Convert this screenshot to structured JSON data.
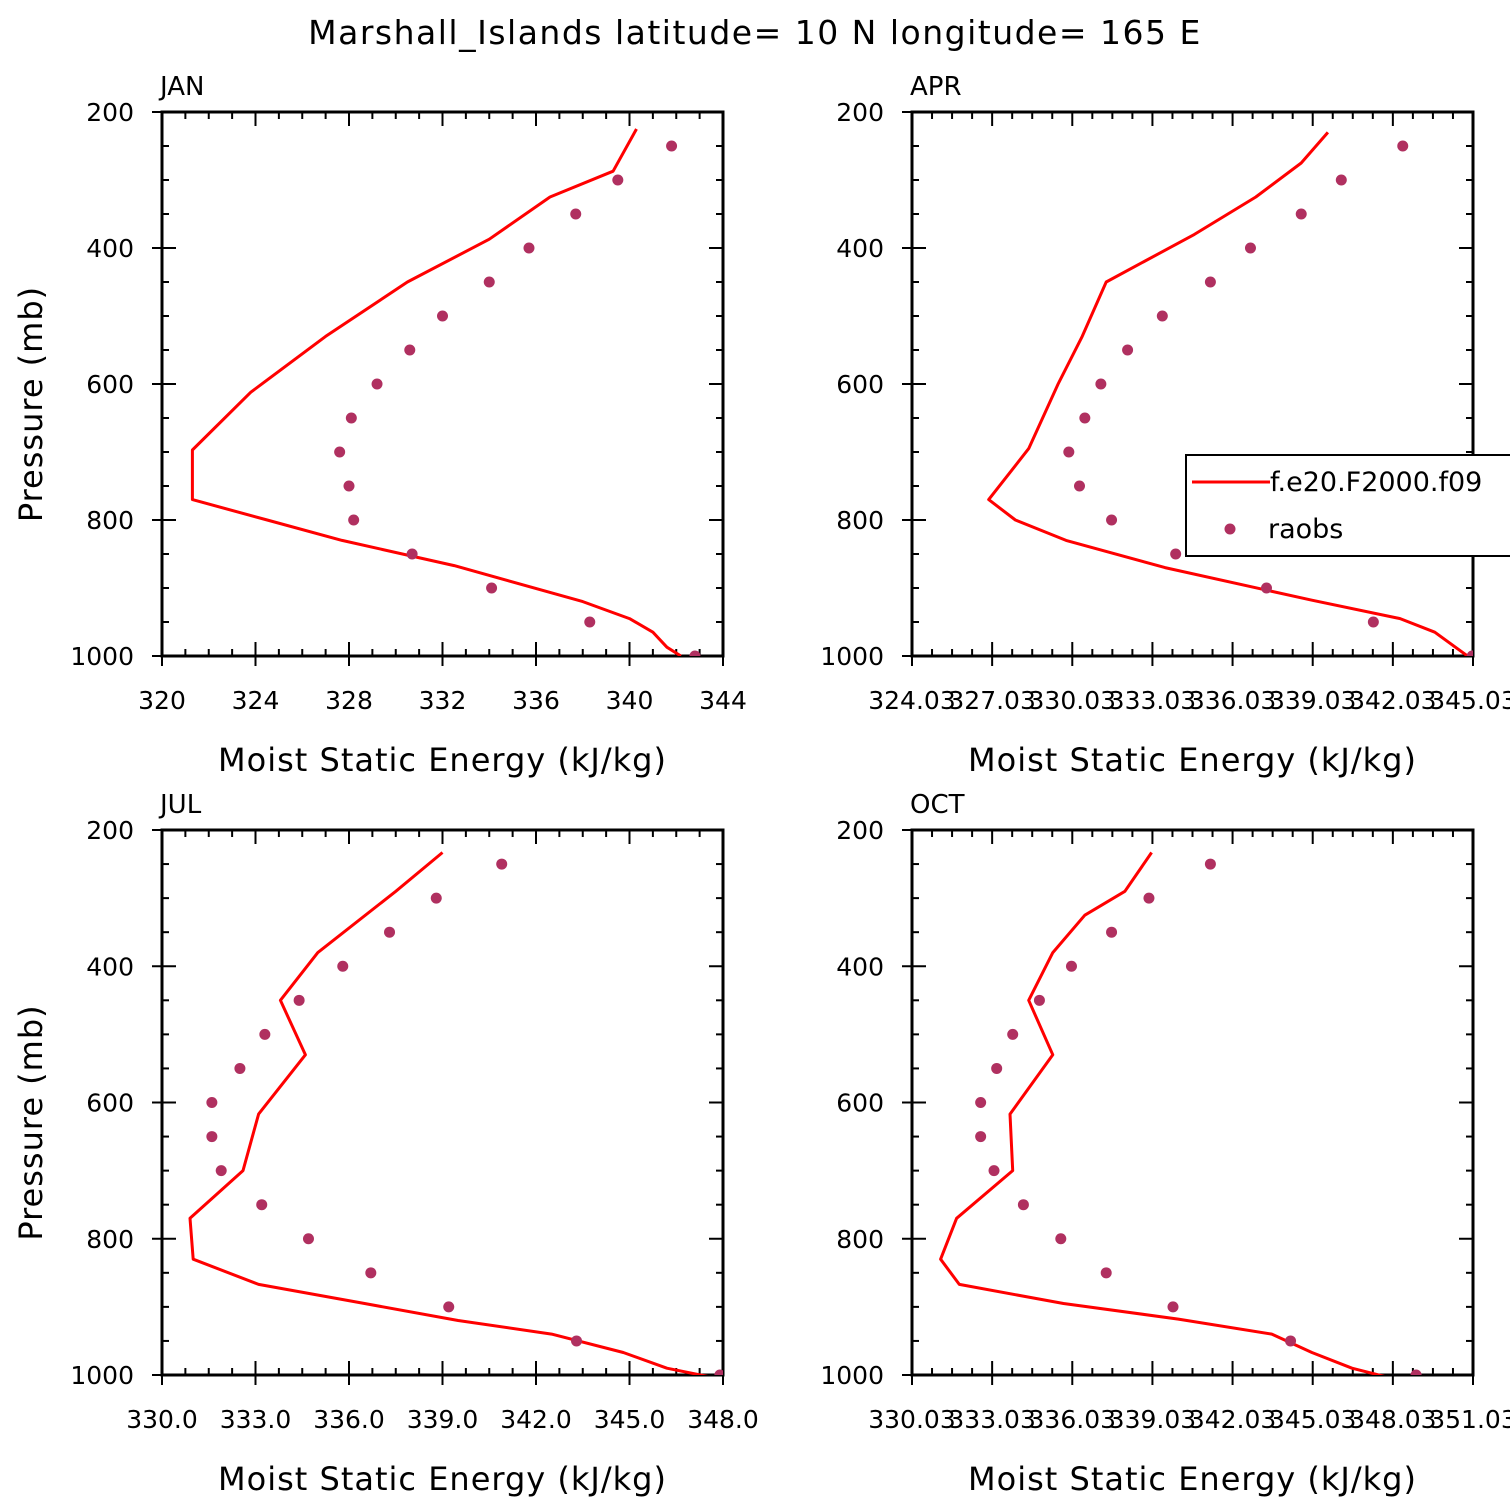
{
  "title": "Marshall_Islands  latitude= 10 N longitude= 165 E",
  "colors": {
    "model": "#ff0000",
    "obs": "#b03060"
  },
  "legend": {
    "model_label": "f.e20.F2000.f09",
    "obs_label": "raobs",
    "placement": "right-middle of APR panel"
  },
  "chart_data": [
    {
      "type": "line",
      "panel": "JAN",
      "xlabel": "Moist Static Energy (kJ/kg)",
      "ylabel": "Pressure (mb)",
      "xlim": [
        320,
        344
      ],
      "ylim": [
        1000,
        200
      ],
      "xticks": [
        "320",
        "324",
        "328",
        "332",
        "336",
        "340",
        "344"
      ],
      "yticks": [
        "200",
        "400",
        "600",
        "800",
        "1000"
      ],
      "series": [
        {
          "name": "f.e20.F2000.f09",
          "kind": "line",
          "x": [
            340.3,
            339.3,
            336.6,
            334.0,
            330.5,
            327.0,
            323.8,
            321.3,
            321.3,
            324.5,
            327.7,
            332.5,
            338.0,
            340.0,
            341.0,
            341.6,
            342.2
          ],
          "y": [
            225,
            287,
            325,
            387,
            450,
            530,
            612,
            697,
            770,
            800,
            830,
            867,
            920,
            945,
            965,
            987,
            1000
          ]
        },
        {
          "name": "raobs",
          "kind": "scatter",
          "x": [
            341.8,
            339.5,
            337.7,
            335.7,
            334.0,
            332.0,
            330.6,
            329.2,
            328.1,
            327.6,
            328.0,
            328.2,
            330.7,
            334.1,
            338.3,
            342.8
          ],
          "y": [
            250,
            300,
            350,
            400,
            450,
            500,
            550,
            600,
            650,
            700,
            750,
            800,
            850,
            900,
            950,
            1000
          ]
        }
      ]
    },
    {
      "type": "line",
      "panel": "APR",
      "xlabel": "Moist Static Energy (kJ/kg)",
      "ylabel": "",
      "xlim": [
        324.03,
        345.03
      ],
      "ylim": [
        1000,
        200
      ],
      "xticks": [
        "324.03",
        "327.03",
        "330.03",
        "333.03",
        "336.03",
        "339.03",
        "342.03",
        "345.03"
      ],
      "yticks": [
        "200",
        "400",
        "600",
        "800",
        "1000"
      ],
      "series": [
        {
          "name": "f.e20.F2000.f09",
          "kind": "line",
          "x": [
            339.6,
            338.6,
            336.9,
            334.6,
            331.3,
            330.4,
            329.5,
            328.4,
            326.9,
            327.9,
            329.8,
            333.5,
            339.0,
            342.3,
            343.6,
            345.0
          ],
          "y": [
            230,
            275,
            325,
            380,
            450,
            530,
            600,
            695,
            770,
            800,
            830,
            870,
            918,
            945,
            965,
            1005
          ]
        },
        {
          "name": "raobs",
          "kind": "scatter",
          "x": [
            342.4,
            340.1,
            338.6,
            336.7,
            335.2,
            333.4,
            332.1,
            331.1,
            330.5,
            329.9,
            330.3,
            331.5,
            333.9,
            337.3,
            341.3,
            345.0
          ],
          "y": [
            250,
            300,
            350,
            400,
            450,
            500,
            550,
            600,
            650,
            700,
            750,
            800,
            850,
            900,
            950,
            1000
          ]
        }
      ]
    },
    {
      "type": "line",
      "panel": "JUL",
      "xlabel": "Moist Static Energy (kJ/kg)",
      "ylabel": "Pressure (mb)",
      "xlim": [
        330,
        348
      ],
      "ylim": [
        1000,
        200
      ],
      "xticks": [
        "330.0",
        "333.0",
        "336.0",
        "339.0",
        "342.0",
        "345.0",
        "348.0"
      ],
      "yticks": [
        "200",
        "400",
        "600",
        "800",
        "1000"
      ],
      "series": [
        {
          "name": "f.e20.F2000.f09",
          "kind": "line",
          "x": [
            339.0,
            337.5,
            335.0,
            333.8,
            334.6,
            333.1,
            332.6,
            330.9,
            331.0,
            333.1,
            336.5,
            339.5,
            342.5,
            344.8,
            346.2,
            347.6
          ],
          "y": [
            233,
            290,
            380,
            450,
            530,
            617,
            700,
            770,
            830,
            867,
            895,
            920,
            940,
            967,
            990,
            1003
          ]
        },
        {
          "name": "raobs",
          "kind": "scatter",
          "x": [
            340.9,
            338.8,
            337.3,
            335.8,
            334.4,
            333.3,
            332.5,
            331.6,
            331.6,
            331.9,
            333.2,
            334.7,
            336.7,
            339.2,
            343.3,
            347.9
          ],
          "y": [
            250,
            300,
            350,
            400,
            450,
            500,
            550,
            600,
            650,
            700,
            750,
            800,
            850,
            900,
            950,
            1000
          ]
        }
      ]
    },
    {
      "type": "line",
      "panel": "OCT",
      "xlabel": "Moist Static Energy (kJ/kg)",
      "ylabel": "",
      "xlim": [
        330.03,
        351.03
      ],
      "ylim": [
        1000,
        200
      ],
      "xticks": [
        "330.03",
        "333.03",
        "336.03",
        "339.03",
        "342.03",
        "345.03",
        "348.03",
        "351.03"
      ],
      "yticks": [
        "200",
        "400",
        "600",
        "800",
        "1000"
      ],
      "series": [
        {
          "name": "f.e20.F2000.f09",
          "kind": "line",
          "x": [
            339.0,
            338.0,
            336.5,
            335.3,
            334.4,
            335.3,
            333.7,
            333.8,
            331.7,
            331.1,
            331.8,
            335.7,
            340.0,
            343.5,
            345.0,
            346.5,
            347.8
          ],
          "y": [
            233,
            290,
            325,
            380,
            450,
            530,
            617,
            700,
            770,
            830,
            867,
            895,
            918,
            940,
            967,
            990,
            1003
          ]
        },
        {
          "name": "raobs",
          "kind": "scatter",
          "x": [
            341.2,
            338.9,
            337.5,
            336.0,
            334.8,
            333.8,
            333.2,
            332.6,
            332.6,
            333.1,
            334.2,
            335.6,
            337.3,
            339.8,
            344.2,
            348.9
          ],
          "y": [
            250,
            300,
            350,
            400,
            450,
            500,
            550,
            600,
            650,
            700,
            750,
            800,
            850,
            900,
            950,
            1000
          ]
        }
      ]
    }
  ]
}
